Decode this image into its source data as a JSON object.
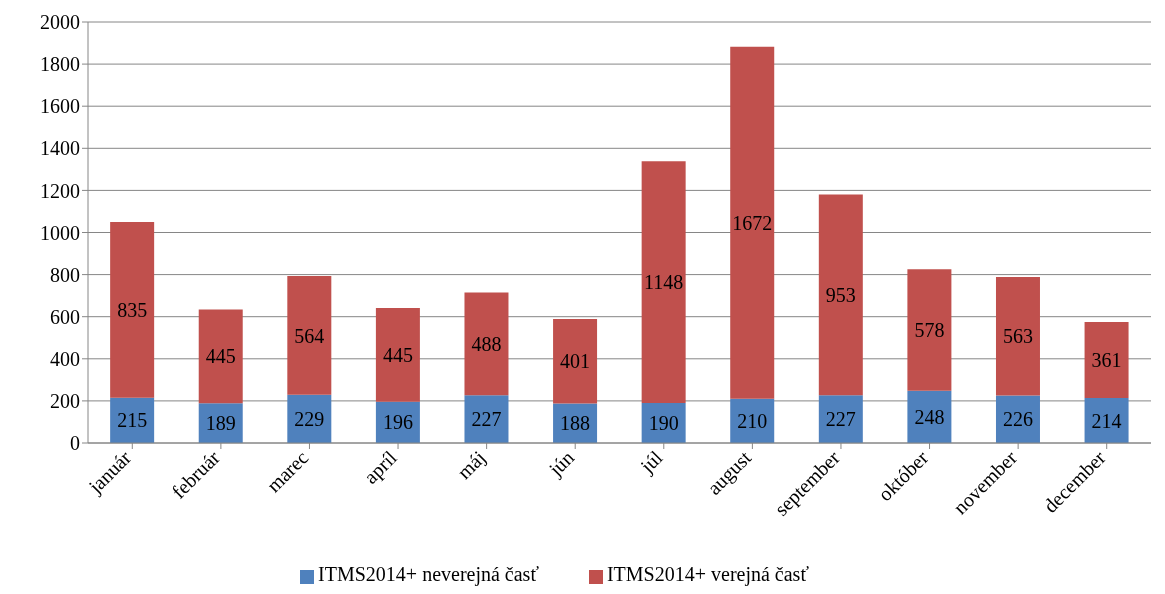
{
  "chart_data": {
    "type": "bar",
    "stacked": true,
    "categories": [
      "január",
      "február",
      "marec",
      "apríl",
      "máj",
      "jún",
      "júl",
      "august",
      "september",
      "október",
      "november",
      "december"
    ],
    "series": [
      {
        "name": "ITMS2014+ neverejná časť",
        "color": "#4f81bd",
        "values": [
          215,
          189,
          229,
          196,
          227,
          188,
          190,
          210,
          227,
          248,
          226,
          214
        ]
      },
      {
        "name": "ITMS2014+ verejná časť",
        "color": "#c0504d",
        "values": [
          835,
          445,
          564,
          445,
          488,
          401,
          1148,
          1672,
          953,
          578,
          563,
          361
        ]
      }
    ],
    "ylim": [
      0,
      2000
    ],
    "yticks": [
      0,
      200,
      400,
      600,
      800,
      1000,
      1200,
      1400,
      1600,
      1800,
      2000
    ],
    "grid": "y",
    "legend": "bottom",
    "data_labels": true
  }
}
